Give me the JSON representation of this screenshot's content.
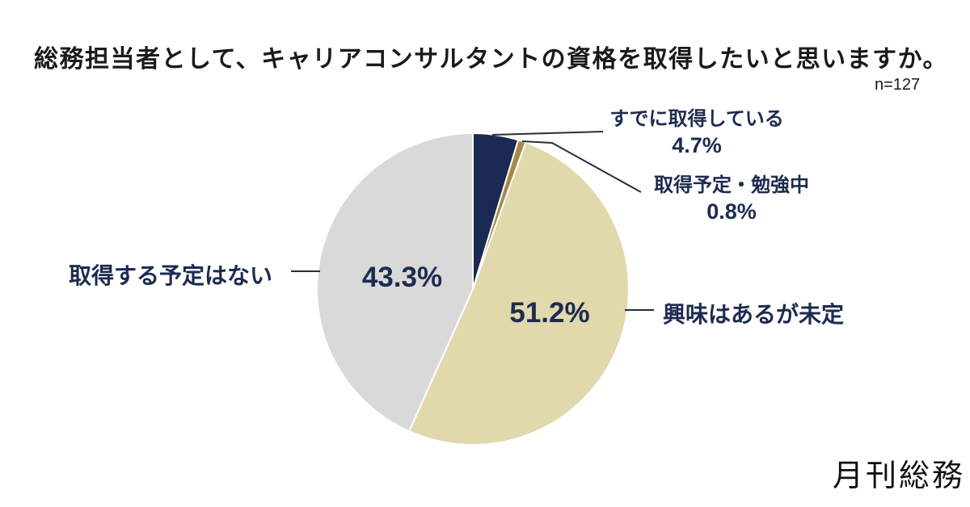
{
  "branding": {
    "logo_text": "月刊総務"
  },
  "colors": {
    "navy": "#1a2a52",
    "gold": "#a58a48",
    "beige": "#e1d8ac",
    "gray": "#d9d9da",
    "label_text": "#1d2b50",
    "title_text": "#1a1a1a",
    "leader_line": "#262e3d",
    "background": "#ffffff"
  },
  "chart_data": {
    "type": "pie",
    "title": "総務担当者として、キャリアコンサルタントの資格を取得したいと思いますか。",
    "n_label": "n=127",
    "start_angle_deg": 0,
    "direction": "clockwise",
    "legend_position": "none",
    "slices": [
      {
        "label": "すでに取得している",
        "value": 4.7,
        "pct_label": "4.7%",
        "color": "#1a2a52",
        "label_placement": "outside-right"
      },
      {
        "label": "取得予定・勉強中",
        "value": 0.8,
        "pct_label": "0.8%",
        "color": "#a58a48",
        "label_placement": "outside-right"
      },
      {
        "label": "興味はあるが未定",
        "value": 51.2,
        "pct_label": "51.2%",
        "color": "#e1d8ac",
        "label_placement": "inside"
      },
      {
        "label": "取得する予定はない",
        "value": 43.3,
        "pct_label": "43.3%",
        "color": "#d9d9da",
        "label_placement": "inside"
      }
    ]
  }
}
